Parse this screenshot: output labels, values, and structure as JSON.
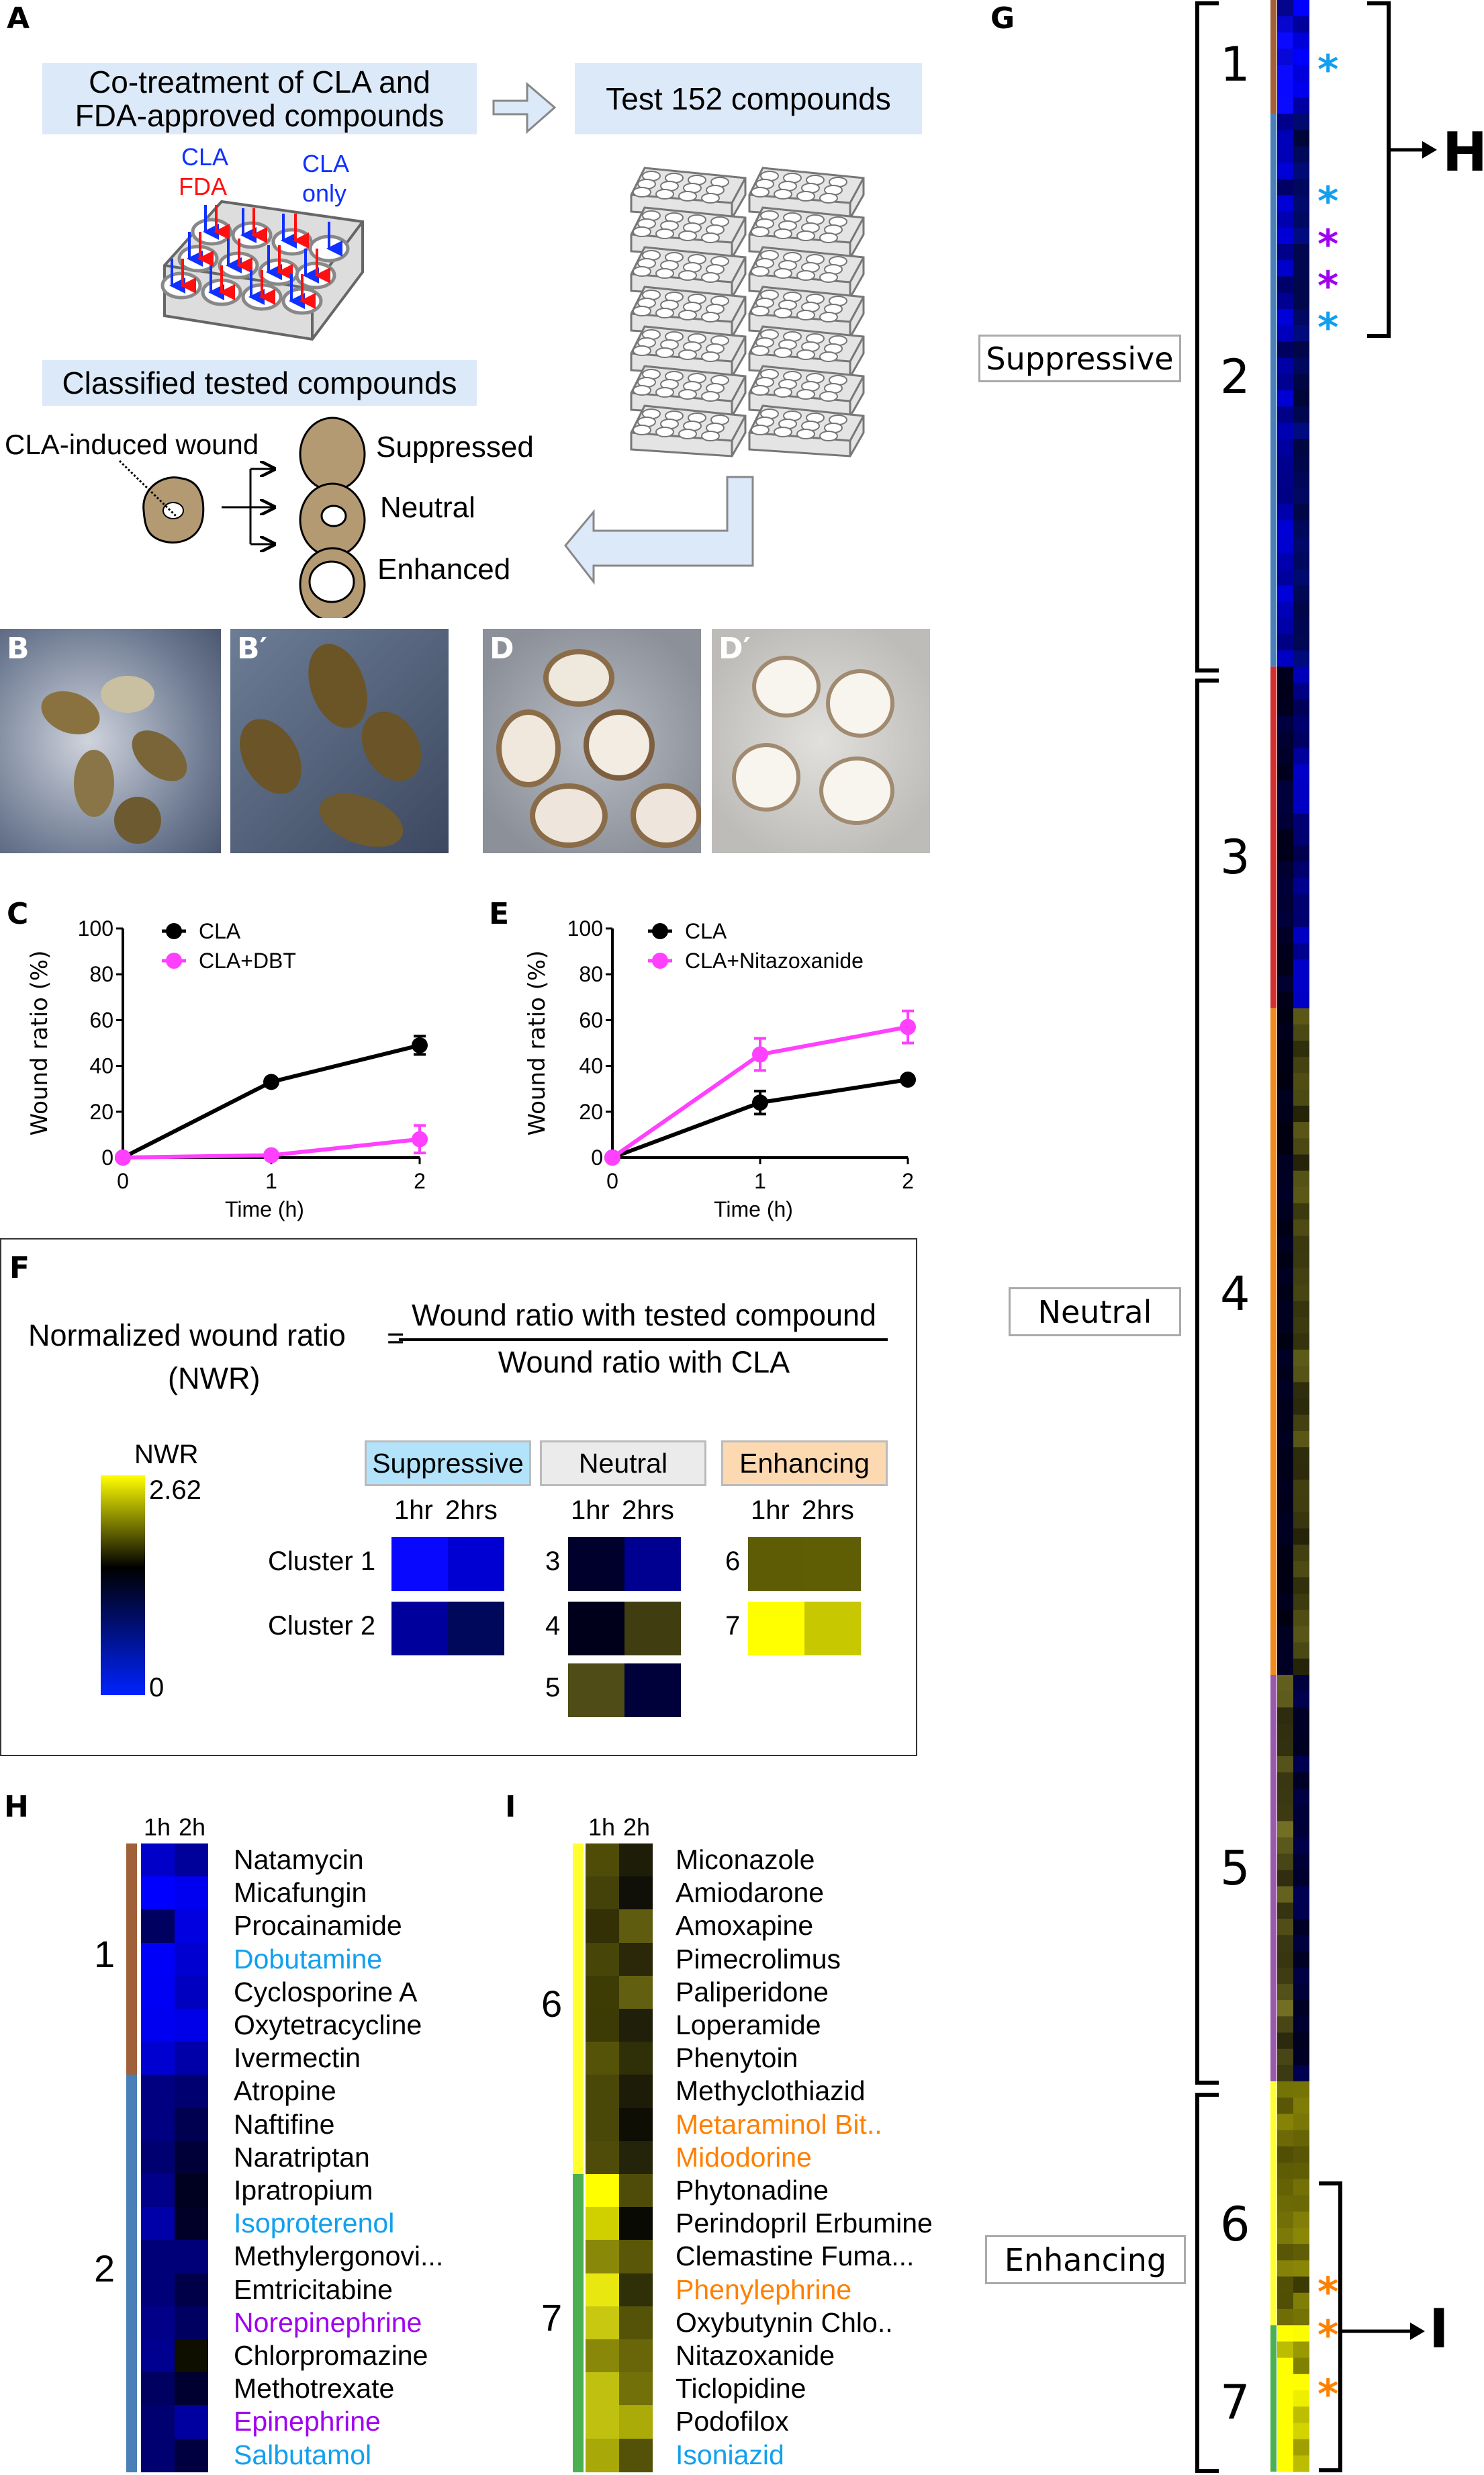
{
  "panel_a": {
    "label": "A",
    "step1": [
      "Co-treatment of CLA and",
      "FDA-approved compounds"
    ],
    "step2": "Test 152 compounds",
    "step3": "Classified tested compounds",
    "plate_labels": {
      "cla": "CLA",
      "fda": "FDA",
      "cla_only_1": "CLA",
      "cla_only_2": "only"
    },
    "wound_label": "CLA-induced wound",
    "outcomes": [
      "Suppressed",
      "Neutral",
      "Enhanced"
    ],
    "colors": {
      "cla": "#1030ff",
      "fda": "#ff1010",
      "box": "#dce9f8",
      "tissue": "#b49a72"
    }
  },
  "photos": {
    "b": "B",
    "b_prime": "B′",
    "d": "D",
    "d_prime": "D′"
  },
  "chart_labels": {
    "c": "C",
    "e": "E"
  },
  "chart_data": [
    {
      "type": "line",
      "panel": "C",
      "xlabel": "Time (h)",
      "ylabel": "Wound ratio (%)",
      "x": [
        0,
        1,
        2
      ],
      "xticks": [
        "0",
        "1",
        "2"
      ],
      "yticks": [
        "0",
        "20",
        "40",
        "60",
        "80",
        "100"
      ],
      "ylim": [
        0,
        100
      ],
      "legend": "top-left",
      "series": [
        {
          "name": "CLA",
          "color": "#000000",
          "values": [
            0,
            33,
            49
          ],
          "errors": [
            0,
            1,
            4
          ]
        },
        {
          "name": "CLA+DBT",
          "color": "#ff40ff",
          "values": [
            0,
            1,
            8
          ],
          "errors": [
            0,
            0,
            6
          ]
        }
      ]
    },
    {
      "type": "line",
      "panel": "E",
      "xlabel": "Time (h)",
      "ylabel": "Wound ratio (%)",
      "x": [
        0,
        1,
        2
      ],
      "xticks": [
        "0",
        "1",
        "2"
      ],
      "yticks": [
        "0",
        "20",
        "40",
        "60",
        "80",
        "100"
      ],
      "ylim": [
        0,
        100
      ],
      "legend": "top-left",
      "series": [
        {
          "name": "CLA",
          "color": "#000000",
          "values": [
            0,
            24,
            34
          ],
          "errors": [
            0,
            5,
            1
          ]
        },
        {
          "name": "CLA+Nitazoxanide",
          "color": "#ff40ff",
          "values": [
            0,
            45,
            57
          ],
          "errors": [
            0,
            7,
            7
          ]
        }
      ]
    }
  ],
  "panel_f": {
    "label": "F",
    "lhs": "Normalized wound ratio",
    "lhs_abbr": "(NWR)",
    "equals": "=",
    "numerator": "Wound ratio with tested compound",
    "denominator": "Wound ratio with CLA",
    "scale": {
      "title": "NWR",
      "max": "2.62",
      "min": "0",
      "colors": [
        "#0022ff",
        "#000000",
        "#ffff00"
      ]
    },
    "time_headers": [
      "1hr",
      "2hrs"
    ],
    "categories": [
      {
        "name": "Suppressive",
        "color": "#b3e3fa",
        "clusters": [
          {
            "label": "Cluster 1",
            "colors": [
              "#0808ff",
              "#0000d2"
            ]
          },
          {
            "label": "Cluster 2",
            "colors": [
              "#00009c",
              "#00085c"
            ]
          }
        ]
      },
      {
        "name": "Neutral",
        "color": "#ebebeb",
        "clusters": [
          {
            "label": "3",
            "colors": [
              "#00002c",
              "#000090"
            ]
          },
          {
            "label": "4",
            "colors": [
              "#00001a",
              "#403e10"
            ]
          },
          {
            "label": "5",
            "colors": [
              "#4f4c18",
              "#00003a"
            ]
          }
        ]
      },
      {
        "name": "Enhancing",
        "color": "#fdd9b2",
        "clusters": [
          {
            "label": "6",
            "colors": [
              "#5e5c05",
              "#605e05"
            ]
          },
          {
            "label": "7",
            "colors": [
              "#ffff00",
              "#c8c800"
            ]
          }
        ]
      }
    ]
  },
  "panel_g": {
    "label": "G",
    "categories": [
      {
        "name": "Suppressive",
        "color": "#b3e3fa"
      },
      {
        "name": "Neutral",
        "color": "#ebebeb"
      },
      {
        "name": "Enhancing",
        "color": "#fdd9b2"
      }
    ],
    "clusters": [
      "1",
      "2",
      "3",
      "4",
      "5",
      "6",
      "7"
    ],
    "cluster_colors": [
      "#a0603a",
      "#4a7fb8",
      "#d03030",
      "#f08a20",
      "#9a5aaa",
      "#ffff30",
      "#4cb050"
    ],
    "links": [
      "H",
      "I"
    ],
    "asterisk": "*"
  },
  "panel_h": {
    "label": "H",
    "headers": [
      "1h",
      "2h"
    ],
    "clusters": [
      "1",
      "2"
    ],
    "rows": [
      {
        "name": "Natamycin",
        "cluster": 1,
        "colors": [
          "#0000c8",
          "#00009a"
        ]
      },
      {
        "name": "Micafungin",
        "cluster": 1,
        "colors": [
          "#0000ff",
          "#0000f0"
        ]
      },
      {
        "name": "Procainamide",
        "cluster": 1,
        "colors": [
          "#000060",
          "#0000e0"
        ]
      },
      {
        "name": "Dobutamine",
        "cluster": 1,
        "colors": [
          "#0000f8",
          "#0000d0"
        ],
        "highlight": "#12a0ee"
      },
      {
        "name": "Cyclosporine A",
        "cluster": 1,
        "colors": [
          "#0000f4",
          "#0000c0"
        ]
      },
      {
        "name": "Oxytetracycline",
        "cluster": 1,
        "colors": [
          "#0000f0",
          "#0000e8"
        ]
      },
      {
        "name": "Ivermectin",
        "cluster": 1,
        "colors": [
          "#0000d0",
          "#0000a8"
        ]
      },
      {
        "name": "Atropine",
        "cluster": 2,
        "colors": [
          "#000080",
          "#000070"
        ]
      },
      {
        "name": "Naftifine",
        "cluster": 2,
        "colors": [
          "#000080",
          "#000050"
        ]
      },
      {
        "name": "Naratriptan",
        "cluster": 2,
        "colors": [
          "#000070",
          "#000038"
        ]
      },
      {
        "name": "Ipratropium",
        "cluster": 2,
        "colors": [
          "#000088",
          "#000020"
        ]
      },
      {
        "name": "Isoproterenol",
        "cluster": 2,
        "colors": [
          "#0000a8",
          "#000028"
        ],
        "highlight": "#12a0ee"
      },
      {
        "name": "Methylergonovi...",
        "cluster": 2,
        "colors": [
          "#000078",
          "#000078"
        ]
      },
      {
        "name": "Emtricitabine",
        "cluster": 2,
        "colors": [
          "#000078",
          "#000048"
        ]
      },
      {
        "name": "Norepinephrine",
        "cluster": 2,
        "colors": [
          "#000088",
          "#000060"
        ],
        "highlight": "#a000f0"
      },
      {
        "name": "Chlorpromazine",
        "cluster": 2,
        "colors": [
          "#000090",
          "#0f0f00"
        ]
      },
      {
        "name": "Methotrexate",
        "cluster": 2,
        "colors": [
          "#000060",
          "#000030"
        ]
      },
      {
        "name": "Epinephrine",
        "cluster": 2,
        "colors": [
          "#000070",
          "#0000a0"
        ],
        "highlight": "#a000f0"
      },
      {
        "name": "Salbutamol",
        "cluster": 2,
        "colors": [
          "#000070",
          "#000040"
        ],
        "highlight": "#12a0ee"
      }
    ]
  },
  "panel_i": {
    "label": "I",
    "headers": [
      "1h",
      "2h"
    ],
    "clusters": [
      "6",
      "7"
    ],
    "rows": [
      {
        "name": "Miconazole",
        "cluster": 6,
        "colors": [
          "#4f4c08",
          "#1e1d08"
        ]
      },
      {
        "name": "Amiodarone",
        "cluster": 6,
        "colors": [
          "#444208",
          "#101008"
        ]
      },
      {
        "name": "Amoxapine",
        "cluster": 6,
        "colors": [
          "#333005",
          "#5f5c10"
        ]
      },
      {
        "name": "Pimecrolimus",
        "cluster": 6,
        "colors": [
          "#474508",
          "#2a2808"
        ]
      },
      {
        "name": "Paliperidone",
        "cluster": 6,
        "colors": [
          "#3e3c05",
          "#626010"
        ]
      },
      {
        "name": "Loperamide",
        "cluster": 6,
        "colors": [
          "#3c3a05",
          "#20200a"
        ]
      },
      {
        "name": "Phenytoin",
        "cluster": 6,
        "colors": [
          "#555308",
          "#303008"
        ]
      },
      {
        "name": "Methyclothiazid",
        "cluster": 6,
        "colors": [
          "#4a4808",
          "#1c1c08"
        ]
      },
      {
        "name": "Metaraminol Bit..",
        "cluster": 6,
        "colors": [
          "#4a4808",
          "#0e0e05"
        ],
        "highlight": "#ff8000"
      },
      {
        "name": "Midodorine",
        "cluster": 6,
        "colors": [
          "#4e4c08",
          "#24240a"
        ],
        "highlight": "#ff8000"
      },
      {
        "name": "Phytonadine",
        "cluster": 7,
        "colors": [
          "#ffff00",
          "#4e4c08"
        ]
      },
      {
        "name": "Perindopril Erbumine",
        "cluster": 7,
        "colors": [
          "#d0d000",
          "#0a0a05"
        ]
      },
      {
        "name": "Clemastine Fuma...",
        "cluster": 7,
        "colors": [
          "#8a8808",
          "#5a5808"
        ]
      },
      {
        "name": "Phenylephrine",
        "cluster": 7,
        "colors": [
          "#e8e810",
          "#303008"
        ],
        "highlight": "#ff8000"
      },
      {
        "name": "Oxybutynin Chlo..",
        "cluster": 7,
        "colors": [
          "#c8c810",
          "#555308"
        ]
      },
      {
        "name": "Nitazoxanide",
        "cluster": 7,
        "colors": [
          "#8a8808",
          "#686608"
        ]
      },
      {
        "name": "Ticlopidine",
        "cluster": 7,
        "colors": [
          "#c0c010",
          "#727008"
        ]
      },
      {
        "name": "Podofilox",
        "cluster": 7,
        "colors": [
          "#c0c010",
          "#aaaa08"
        ]
      },
      {
        "name": "Isoniazid",
        "cluster": 7,
        "colors": [
          "#a8a808",
          "#545208"
        ],
        "highlight": "#12a0ee"
      }
    ]
  }
}
